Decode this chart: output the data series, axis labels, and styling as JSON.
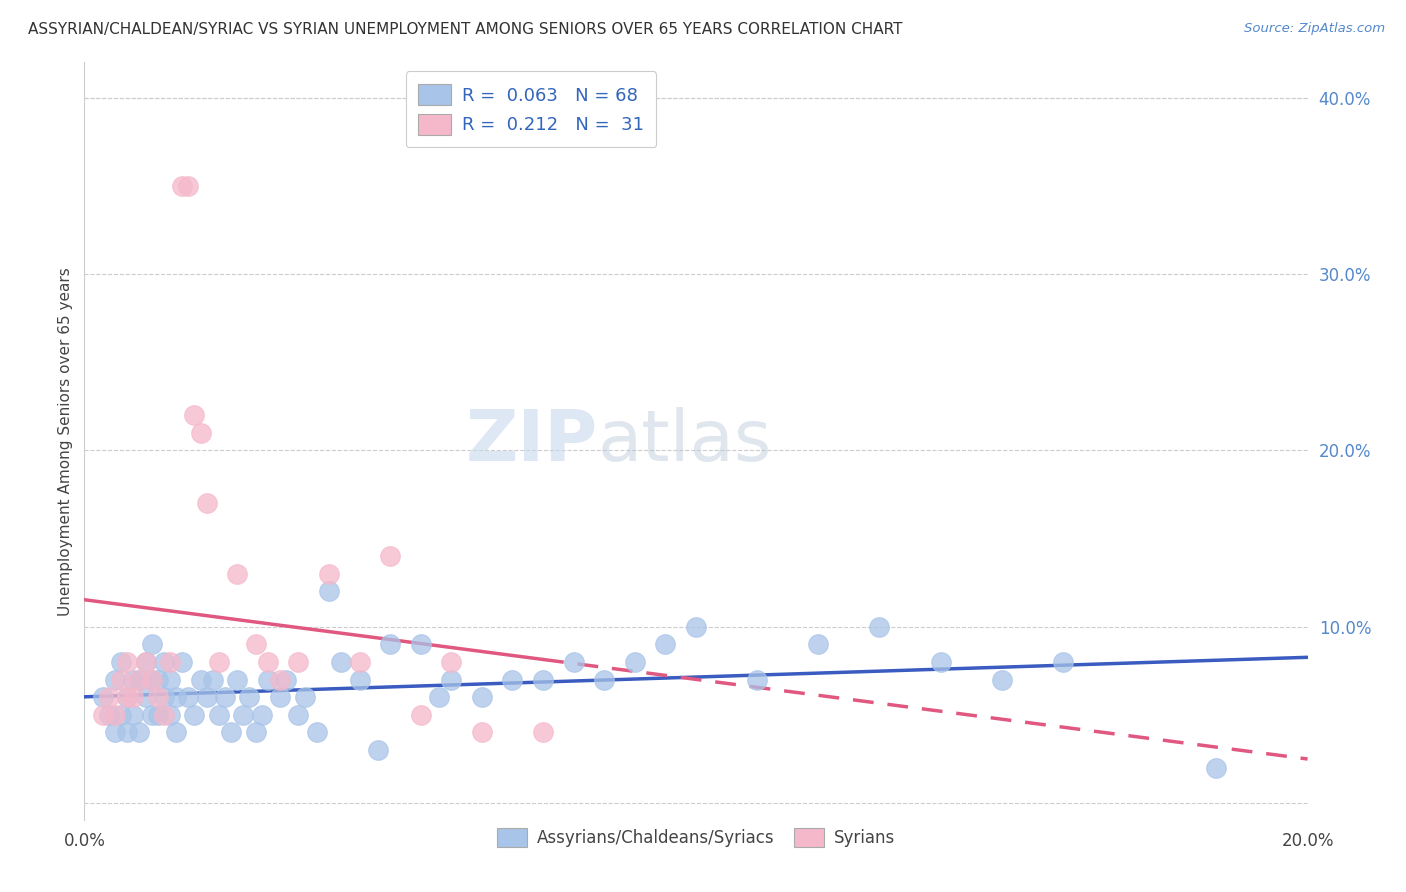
{
  "title": "ASSYRIAN/CHALDEAN/SYRIAC VS SYRIAN UNEMPLOYMENT AMONG SENIORS OVER 65 YEARS CORRELATION CHART",
  "source": "Source: ZipAtlas.com",
  "ylabel": "Unemployment Among Seniors over 65 years",
  "xlim": [
    0.0,
    0.2
  ],
  "ylim": [
    -0.01,
    0.42
  ],
  "xticks": [
    0.0,
    0.05,
    0.1,
    0.15,
    0.2
  ],
  "xtick_labels": [
    "0.0%",
    "",
    "",
    "",
    "20.0%"
  ],
  "yticks_right": [
    0.0,
    0.1,
    0.2,
    0.3,
    0.4
  ],
  "ytick_right_labels": [
    "",
    "10.0%",
    "20.0%",
    "30.0%",
    "40.0%"
  ],
  "legend1_label": "Assyrians/Chaldeans/Syriacs",
  "legend2_label": "Syrians",
  "R1": "0.063",
  "N1": "68",
  "R2": "0.212",
  "N2": "31",
  "color_blue": "#a8c4e8",
  "color_pink": "#f5b8ca",
  "line_blue": "#3a5bbf",
  "line_pink": "#e05880",
  "watermark_zip": "ZIP",
  "watermark_atlas": "atlas",
  "blue_scatter_x": [
    0.003,
    0.004,
    0.005,
    0.005,
    0.006,
    0.006,
    0.007,
    0.007,
    0.008,
    0.008,
    0.009,
    0.009,
    0.01,
    0.01,
    0.011,
    0.011,
    0.011,
    0.012,
    0.012,
    0.013,
    0.013,
    0.014,
    0.014,
    0.015,
    0.015,
    0.016,
    0.017,
    0.018,
    0.019,
    0.02,
    0.021,
    0.022,
    0.023,
    0.024,
    0.025,
    0.026,
    0.027,
    0.028,
    0.029,
    0.03,
    0.032,
    0.033,
    0.035,
    0.036,
    0.038,
    0.04,
    0.042,
    0.045,
    0.048,
    0.05,
    0.055,
    0.058,
    0.06,
    0.065,
    0.07,
    0.075,
    0.08,
    0.085,
    0.09,
    0.095,
    0.1,
    0.11,
    0.12,
    0.13,
    0.14,
    0.15,
    0.16,
    0.185
  ],
  "blue_scatter_y": [
    0.06,
    0.05,
    0.04,
    0.07,
    0.05,
    0.08,
    0.04,
    0.06,
    0.07,
    0.05,
    0.07,
    0.04,
    0.06,
    0.08,
    0.05,
    0.07,
    0.09,
    0.05,
    0.07,
    0.06,
    0.08,
    0.05,
    0.07,
    0.06,
    0.04,
    0.08,
    0.06,
    0.05,
    0.07,
    0.06,
    0.07,
    0.05,
    0.06,
    0.04,
    0.07,
    0.05,
    0.06,
    0.04,
    0.05,
    0.07,
    0.06,
    0.07,
    0.05,
    0.06,
    0.04,
    0.12,
    0.08,
    0.07,
    0.03,
    0.09,
    0.09,
    0.06,
    0.07,
    0.06,
    0.07,
    0.07,
    0.08,
    0.07,
    0.08,
    0.09,
    0.1,
    0.07,
    0.09,
    0.1,
    0.08,
    0.07,
    0.08,
    0.02
  ],
  "pink_scatter_x": [
    0.003,
    0.004,
    0.005,
    0.006,
    0.007,
    0.007,
    0.008,
    0.009,
    0.01,
    0.011,
    0.012,
    0.013,
    0.014,
    0.016,
    0.017,
    0.018,
    0.019,
    0.02,
    0.022,
    0.025,
    0.028,
    0.03,
    0.032,
    0.035,
    0.04,
    0.045,
    0.05,
    0.055,
    0.06,
    0.065,
    0.075
  ],
  "pink_scatter_y": [
    0.05,
    0.06,
    0.05,
    0.07,
    0.06,
    0.08,
    0.06,
    0.07,
    0.08,
    0.07,
    0.06,
    0.05,
    0.08,
    0.35,
    0.35,
    0.22,
    0.21,
    0.17,
    0.08,
    0.13,
    0.09,
    0.08,
    0.07,
    0.08,
    0.13,
    0.08,
    0.14,
    0.05,
    0.08,
    0.04,
    0.04
  ],
  "grid_color": "#cccccc",
  "spine_color": "#cccccc"
}
